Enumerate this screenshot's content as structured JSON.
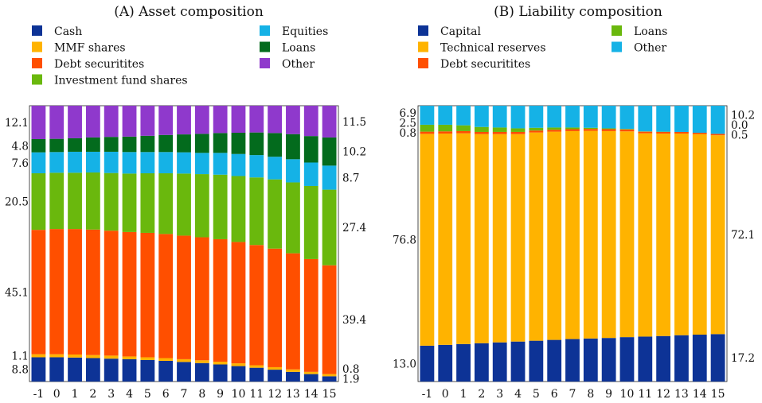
{
  "chart_data": [
    {
      "type": "bar",
      "stacked": true,
      "normalized": true,
      "title": "(A) Asset composition",
      "categories": [
        "-1",
        "0",
        "1",
        "2",
        "3",
        "4",
        "5",
        "6",
        "7",
        "8",
        "9",
        "10",
        "11",
        "12",
        "13",
        "14",
        "15"
      ],
      "ylim": [
        0,
        100
      ],
      "legend_position": "top",
      "series": [
        {
          "name": "Cash",
          "color": "#0d3396",
          "values": [
            8.8,
            8.8,
            8.7,
            8.5,
            8.3,
            8.1,
            7.8,
            7.5,
            7.1,
            6.7,
            6.2,
            5.6,
            5.0,
            4.3,
            3.5,
            2.7,
            1.9
          ]
        },
        {
          "name": "MMF shares",
          "color": "#ffb300",
          "values": [
            1.1,
            1.1,
            1.1,
            1.1,
            1.1,
            1.0,
            1.0,
            1.0,
            1.0,
            1.0,
            1.0,
            1.0,
            0.9,
            0.9,
            0.9,
            0.8,
            0.8
          ]
        },
        {
          "name": "Debt securitites",
          "color": "#ff4f00",
          "values": [
            45.1,
            45.4,
            45.5,
            45.5,
            45.3,
            45.1,
            45.1,
            45.0,
            44.8,
            44.6,
            44.4,
            44.0,
            43.6,
            43.0,
            42.1,
            40.9,
            39.4
          ]
        },
        {
          "name": "Investment fund shares",
          "color": "#6ab80d",
          "values": [
            20.5,
            20.4,
            20.4,
            20.7,
            20.9,
            21.2,
            21.6,
            22.0,
            22.5,
            22.9,
            23.4,
            23.9,
            24.5,
            25.1,
            25.7,
            26.5,
            27.4
          ]
        },
        {
          "name": "Equities",
          "color": "#15b2e6",
          "values": [
            7.6,
            7.5,
            7.6,
            7.5,
            7.7,
            7.8,
            7.7,
            7.7,
            7.7,
            7.7,
            7.9,
            8.0,
            8.1,
            8.2,
            8.4,
            8.5,
            8.7
          ]
        },
        {
          "name": "Loans",
          "color": "#036b1d",
          "values": [
            4.8,
            4.8,
            4.9,
            5.2,
            5.4,
            5.6,
            5.9,
            6.2,
            6.5,
            6.9,
            7.2,
            7.7,
            8.2,
            8.6,
            9.1,
            9.6,
            10.2
          ]
        },
        {
          "name": "Other",
          "color": "#8f39cc",
          "values": [
            12.1,
            12.0,
            11.8,
            11.5,
            11.3,
            11.2,
            10.9,
            10.6,
            10.4,
            10.2,
            9.9,
            9.8,
            9.7,
            9.9,
            10.3,
            11.0,
            11.5
          ]
        }
      ],
      "left_labels": [
        "8.8",
        "1.1",
        "45.1",
        "20.5",
        "7.6",
        "4.8",
        "12.1"
      ],
      "right_labels": [
        "1.9",
        "0.8",
        "39.4",
        "27.4",
        "8.7",
        "10.2",
        "11.5"
      ]
    },
    {
      "type": "bar",
      "stacked": true,
      "normalized": true,
      "title": "(B) Liability composition",
      "categories": [
        "-1",
        "0",
        "1",
        "2",
        "3",
        "4",
        "5",
        "6",
        "7",
        "8",
        "9",
        "10",
        "11",
        "12",
        "13",
        "14",
        "15"
      ],
      "ylim": [
        0,
        100
      ],
      "legend_position": "top",
      "series": [
        {
          "name": "Capital",
          "color": "#0d3396",
          "values": [
            13.0,
            13.3,
            13.6,
            13.9,
            14.2,
            14.5,
            14.8,
            15.1,
            15.4,
            15.6,
            15.8,
            16.1,
            16.3,
            16.5,
            16.8,
            17.0,
            17.2
          ]
        },
        {
          "name": "Technical reserves",
          "color": "#ffb300",
          "values": [
            76.8,
            76.6,
            76.4,
            75.8,
            75.5,
            75.2,
            75.5,
            75.5,
            75.4,
            75.3,
            75.0,
            74.6,
            73.7,
            73.4,
            73.1,
            72.7,
            72.1
          ]
        },
        {
          "name": "Debt securitites",
          "color": "#ff4f00",
          "values": [
            0.8,
            0.8,
            0.8,
            0.8,
            0.8,
            0.8,
            0.7,
            0.7,
            0.7,
            0.7,
            0.7,
            0.7,
            0.6,
            0.6,
            0.6,
            0.5,
            0.5
          ]
        },
        {
          "name": "Loans",
          "color": "#6ab80d",
          "values": [
            2.5,
            2.4,
            2.1,
            1.8,
            1.6,
            1.3,
            1.0,
            0.8,
            0.6,
            0.4,
            0.3,
            0.2,
            0.1,
            0.1,
            0.0,
            0.0,
            0.0
          ]
        },
        {
          "name": "Other",
          "color": "#15b2e6",
          "values": [
            6.9,
            6.9,
            7.1,
            7.7,
            7.9,
            8.2,
            8.0,
            7.9,
            7.9,
            8.0,
            8.2,
            8.4,
            9.3,
            9.4,
            9.5,
            9.8,
            10.2
          ]
        }
      ],
      "left_labels": [
        "13.0",
        "76.8",
        "0.8",
        "2.5",
        "6.9"
      ],
      "right_labels": [
        "17.2",
        "72.1",
        "0.5",
        "0.0",
        "10.2"
      ]
    }
  ]
}
